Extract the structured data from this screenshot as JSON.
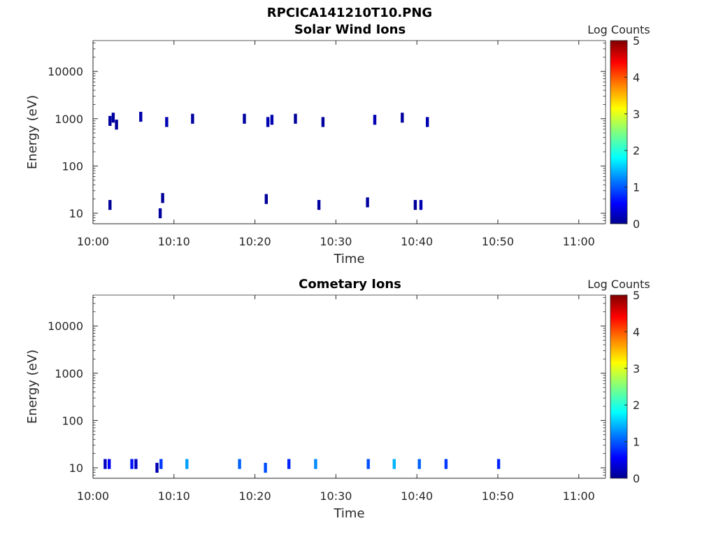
{
  "figure_title": "RPCICA141210T10.PNG",
  "colors": {
    "jet": [
      "#00008f",
      "#0000ff",
      "#0080ff",
      "#00ffff",
      "#80ff80",
      "#ffff00",
      "#ff8000",
      "#ff0000",
      "#800000"
    ]
  },
  "chart_data": [
    {
      "type": "heatmap",
      "title": "Solar Wind Ions",
      "xlabel": "Time",
      "ylabel": "Energy (eV)",
      "x_tick_labels": [
        "10:00",
        "10:10",
        "10:20",
        "10:30",
        "10:40",
        "10:50",
        "11:00"
      ],
      "x_ticks_min": [
        0,
        10,
        20,
        30,
        40,
        50,
        60
      ],
      "xlim_min": [
        0,
        63.3
      ],
      "y_scale": "log",
      "y_tick_labels": [
        "10",
        "100",
        "1000",
        "10000"
      ],
      "y_ticks": [
        10,
        100,
        1000,
        10000
      ],
      "ylim": [
        6,
        45000
      ],
      "colorbar": {
        "label": "Log Counts",
        "range": [
          0,
          5
        ],
        "tick_labels": [
          "0",
          "1",
          "2",
          "3",
          "4",
          "5"
        ],
        "ticks": [
          0,
          1,
          2,
          3,
          4,
          5
        ]
      },
      "cells": [
        {
          "t": 2.1,
          "e": 15,
          "v": 0.05
        },
        {
          "t": 2.1,
          "e": 900,
          "v": 0.1
        },
        {
          "t": 2.5,
          "e": 1050,
          "v": 0.1
        },
        {
          "t": 2.9,
          "e": 750,
          "v": 0.05
        },
        {
          "t": 5.9,
          "e": 1100,
          "v": 0.15
        },
        {
          "t": 8.3,
          "e": 10,
          "v": 0.1
        },
        {
          "t": 8.6,
          "e": 21,
          "v": 0.05
        },
        {
          "t": 9.1,
          "e": 850,
          "v": 0.2
        },
        {
          "t": 12.3,
          "e": 1000,
          "v": 0.1
        },
        {
          "t": 18.7,
          "e": 1000,
          "v": 0.1
        },
        {
          "t": 21.4,
          "e": 20,
          "v": 0.05
        },
        {
          "t": 21.6,
          "e": 850,
          "v": 0.2
        },
        {
          "t": 22.1,
          "e": 950,
          "v": 0.2
        },
        {
          "t": 25.0,
          "e": 1000,
          "v": 0.05
        },
        {
          "t": 27.9,
          "e": 15,
          "v": 0.1
        },
        {
          "t": 28.4,
          "e": 850,
          "v": 0.1
        },
        {
          "t": 33.9,
          "e": 17,
          "v": 0.1
        },
        {
          "t": 34.8,
          "e": 950,
          "v": 0.2
        },
        {
          "t": 38.2,
          "e": 1050,
          "v": 0.1
        },
        {
          "t": 39.8,
          "e": 15,
          "v": 0.05
        },
        {
          "t": 40.5,
          "e": 15,
          "v": 0.2
        },
        {
          "t": 41.3,
          "e": 850,
          "v": 0.2
        }
      ]
    },
    {
      "type": "heatmap",
      "title": "Cometary Ions",
      "xlabel": "Time",
      "ylabel": "Energy (eV)",
      "x_tick_labels": [
        "10:00",
        "10:10",
        "10:20",
        "10:30",
        "10:40",
        "10:50",
        "11:00"
      ],
      "x_ticks_min": [
        0,
        10,
        20,
        30,
        40,
        50,
        60
      ],
      "xlim_min": [
        0,
        63.3
      ],
      "y_scale": "log",
      "y_tick_labels": [
        "10",
        "100",
        "1000",
        "10000"
      ],
      "y_ticks": [
        10,
        100,
        1000,
        10000
      ],
      "ylim": [
        6,
        45000
      ],
      "colorbar": {
        "label": "Log Counts",
        "range": [
          0,
          5
        ],
        "tick_labels": [
          "0",
          "1",
          "2",
          "3",
          "4",
          "5"
        ],
        "ticks": [
          0,
          1,
          2,
          3,
          4,
          5
        ]
      },
      "cells": [
        {
          "t": 1.5,
          "e": 12,
          "v": 0.3
        },
        {
          "t": 2.0,
          "e": 12,
          "v": 0.6
        },
        {
          "t": 4.8,
          "e": 12,
          "v": 0.7
        },
        {
          "t": 5.3,
          "e": 12,
          "v": 0.3
        },
        {
          "t": 7.9,
          "e": 10,
          "v": 0.2
        },
        {
          "t": 8.4,
          "e": 12,
          "v": 0.9
        },
        {
          "t": 11.6,
          "e": 12,
          "v": 1.4
        },
        {
          "t": 18.1,
          "e": 12,
          "v": 1.1
        },
        {
          "t": 21.3,
          "e": 10,
          "v": 1.0
        },
        {
          "t": 24.2,
          "e": 12,
          "v": 0.8
        },
        {
          "t": 27.5,
          "e": 12,
          "v": 1.3
        },
        {
          "t": 34.0,
          "e": 12,
          "v": 1.0
        },
        {
          "t": 37.2,
          "e": 12,
          "v": 1.5
        },
        {
          "t": 40.3,
          "e": 12,
          "v": 1.1
        },
        {
          "t": 43.6,
          "e": 12,
          "v": 0.9
        },
        {
          "t": 50.1,
          "e": 12,
          "v": 0.8
        }
      ]
    }
  ]
}
